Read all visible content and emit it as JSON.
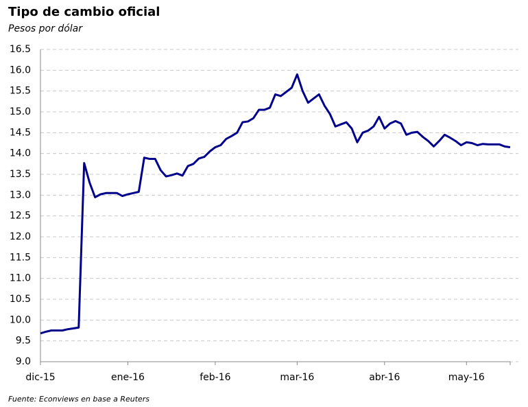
{
  "chart_data": {
    "type": "line",
    "title": "Tipo de cambio oficial",
    "subtitle": "Pesos por dólar",
    "source": "Fuente: Econviews en base a Reuters",
    "color": "#00008b",
    "grid": true,
    "categories": [
      "dic-15",
      null,
      null,
      null,
      null,
      null,
      null,
      null,
      null,
      null,
      null,
      null,
      null,
      null,
      null,
      null,
      "ene-16",
      null,
      null,
      null,
      null,
      null,
      null,
      null,
      null,
      null,
      null,
      null,
      null,
      null,
      null,
      null,
      "feb-16",
      null,
      null,
      null,
      null,
      null,
      null,
      null,
      null,
      null,
      null,
      null,
      null,
      null,
      null,
      "mar-16",
      null,
      null,
      null,
      null,
      null,
      null,
      null,
      null,
      null,
      null,
      null,
      null,
      null,
      null,
      null,
      "abr-16",
      null,
      null,
      null,
      null,
      null,
      null,
      null,
      null,
      null,
      null,
      null,
      null,
      null,
      null,
      "may-16",
      null,
      null,
      null,
      null,
      null,
      null,
      null,
      null
    ],
    "values": [
      9.68,
      9.72,
      9.75,
      9.75,
      9.75,
      9.78,
      9.8,
      9.82,
      13.77,
      13.3,
      12.95,
      13.02,
      13.05,
      13.05,
      13.05,
      12.98,
      13.02,
      13.05,
      13.08,
      13.9,
      13.87,
      13.87,
      13.6,
      13.45,
      13.48,
      13.52,
      13.47,
      13.7,
      13.75,
      13.88,
      13.92,
      14.05,
      14.15,
      14.2,
      14.35,
      14.42,
      14.5,
      14.75,
      14.77,
      14.85,
      15.05,
      15.05,
      15.1,
      15.42,
      15.38,
      15.48,
      15.58,
      15.9,
      15.5,
      15.22,
      15.32,
      15.42,
      15.15,
      14.95,
      14.65,
      14.7,
      14.75,
      14.6,
      14.27,
      14.5,
      14.55,
      14.65,
      14.88,
      14.6,
      14.72,
      14.78,
      14.72,
      14.45,
      14.5,
      14.52,
      14.4,
      14.3,
      14.17,
      14.3,
      14.45,
      14.38,
      14.3,
      14.2,
      14.27,
      14.25,
      14.2,
      14.23,
      14.22,
      14.22,
      14.22,
      14.17,
      14.15
    ],
    "ylim": [
      9,
      16.5
    ],
    "yticks": [
      {
        "value": 9,
        "label": "9.0"
      },
      9.5,
      {
        "value": 10,
        "label": "10.0"
      },
      10.5,
      {
        "value": 11,
        "label": "11.0"
      },
      11.5,
      {
        "value": 12,
        "label": "12.0"
      },
      12.5,
      {
        "value": 13,
        "label": "13.0"
      },
      13.5,
      {
        "value": 14,
        "label": "14.0"
      },
      14.5,
      {
        "value": 15,
        "label": "15.0"
      },
      15.5,
      {
        "value": 16,
        "label": "16.0"
      },
      16.5
    ]
  }
}
